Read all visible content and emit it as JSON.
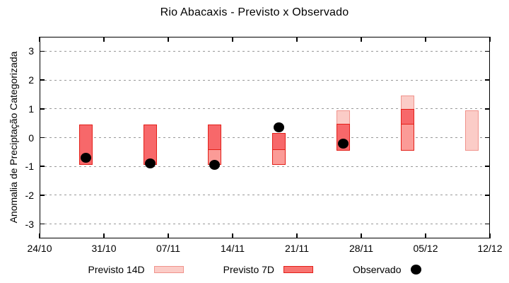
{
  "title": "Rio Abacaxis - Previsto x Observado",
  "chart_data": {
    "type": "bar",
    "subtype": "forecast interval boxes (7-day and 14-day) with observed scatter overlay",
    "title": "Rio Abacaxis - Previsto x Observado",
    "xlabel": "",
    "ylabel": "Anomalia de Preciptação Categorizada",
    "ylim": [
      -3.5,
      3.5
    ],
    "yticks": [
      -3,
      -2,
      -1,
      0,
      1,
      2,
      3
    ],
    "xtick_labels": [
      "24/10",
      "31/10",
      "07/11",
      "14/11",
      "21/11",
      "28/11",
      "05/12",
      "12/12"
    ],
    "xtick_days": [
      0,
      7,
      14,
      21,
      28,
      35,
      42,
      49
    ],
    "x_total_days": 49,
    "grid": "horizontal dashed gridlines at integer y values",
    "legend_position": "bottom-center",
    "bars": [
      {
        "date": "29/10",
        "day": 5,
        "previsto_14d": [
          0.45,
          -0.95
        ],
        "previsto_7d": [
          0.45,
          -0.95
        ],
        "segments": [
          {
            "from": 0.45,
            "to": -0.95,
            "style": "overlap"
          }
        ]
      },
      {
        "date": "05/11",
        "day": 12,
        "previsto_14d": [
          0.45,
          -0.95
        ],
        "previsto_7d": [
          0.45,
          -0.95
        ],
        "segments": [
          {
            "from": 0.45,
            "to": -0.95,
            "style": "overlap"
          }
        ]
      },
      {
        "date": "12/11",
        "day": 19,
        "previsto_14d": [
          0.45,
          -0.45
        ],
        "previsto_7d": [
          0.45,
          -0.95
        ],
        "segments": [
          {
            "from": 0.45,
            "to": -0.45,
            "style": "overlap"
          },
          {
            "from": -0.45,
            "to": -0.95,
            "style": "p7"
          }
        ]
      },
      {
        "date": "19/11",
        "day": 26,
        "previsto_14d": [
          0.15,
          -0.45
        ],
        "previsto_7d": [
          0.15,
          -0.95
        ],
        "segments": [
          {
            "from": 0.15,
            "to": -0.45,
            "style": "overlap"
          },
          {
            "from": -0.45,
            "to": -0.95,
            "style": "p7"
          }
        ]
      },
      {
        "date": "26/11",
        "day": 33,
        "previsto_14d": [
          0.95,
          -0.45
        ],
        "previsto_7d": [
          0.45,
          -0.45
        ],
        "segments": [
          {
            "from": 0.95,
            "to": 0.45,
            "style": "p14"
          },
          {
            "from": 0.45,
            "to": -0.45,
            "style": "overlap"
          }
        ]
      },
      {
        "date": "03/12",
        "day": 40,
        "previsto_14d": [
          1.45,
          0.45
        ],
        "previsto_7d": [
          0.95,
          -0.45
        ],
        "segments": [
          {
            "from": 1.45,
            "to": 0.95,
            "style": "p14"
          },
          {
            "from": 0.95,
            "to": 0.45,
            "style": "overlap"
          },
          {
            "from": 0.45,
            "to": -0.45,
            "style": "p7"
          }
        ]
      },
      {
        "date": "10/12",
        "day": 47,
        "previsto_14d": [
          0.95,
          -0.45
        ],
        "previsto_7d": null,
        "segments": [
          {
            "from": 0.95,
            "to": -0.45,
            "style": "p14"
          }
        ]
      }
    ],
    "observed": [
      {
        "date": "29/10",
        "day": 5,
        "value": -0.7
      },
      {
        "date": "05/11",
        "day": 12,
        "value": -0.9
      },
      {
        "date": "12/11",
        "day": 19,
        "value": -0.95
      },
      {
        "date": "19/11",
        "day": 26,
        "value": 0.35
      },
      {
        "date": "26/11",
        "day": 33,
        "value": -0.2
      }
    ],
    "legend": [
      {
        "label": "Previsto 14D",
        "swatch": "box",
        "fill": "#fbccc7",
        "border": "#f0938c"
      },
      {
        "label": "Previsto 7D",
        "swatch": "box",
        "fill": "#f87471",
        "border": "#e32019"
      },
      {
        "label": "Observado",
        "swatch": "dot",
        "fill": "#000000"
      }
    ],
    "colors": {
      "axis": "#000000",
      "grid": "#999999",
      "observed_dot": "#000000",
      "segment_styles": {
        "overlap": {
          "fill": "#f7686a",
          "border": "#e32019"
        },
        "p7": {
          "fill": "#fb9b97",
          "border": "#e32019"
        },
        "p14": {
          "fill": "#fbccc7",
          "border": "#f0938c"
        }
      }
    }
  }
}
